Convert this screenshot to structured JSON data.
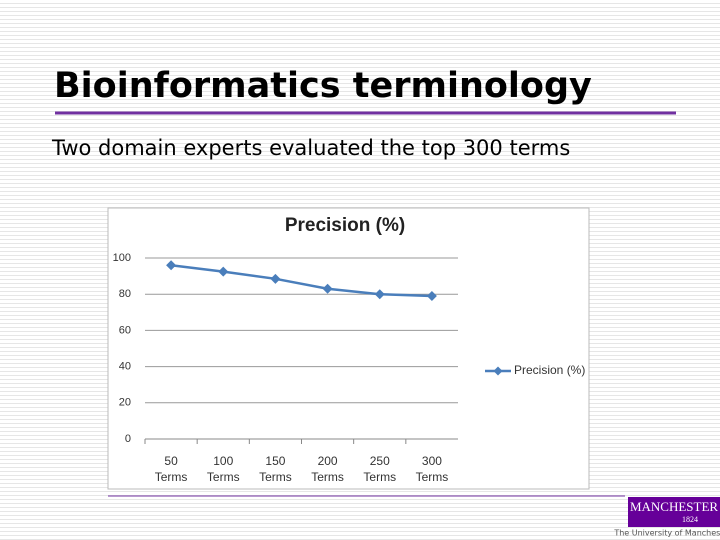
{
  "slide": {
    "title": "Bioinformatics terminology",
    "text": "Two domain experts evaluated the top 300 terms"
  },
  "chart_data": {
    "type": "line",
    "title": "Precision (%)",
    "categories": [
      "50 Terms",
      "100 Terms",
      "150 Terms",
      "200 Terms",
      "250 Terms",
      "300 Terms"
    ],
    "series": [
      {
        "name": "Precision (%)",
        "color": "#4a7ebb",
        "values": [
          96,
          92.5,
          88.5,
          83,
          80,
          79
        ]
      }
    ],
    "ylim": [
      0,
      100
    ],
    "yticks": [
      0,
      20,
      40,
      60,
      80,
      100
    ],
    "grid": true,
    "legend": "right"
  },
  "logo": {
    "name": "MANCHESTER",
    "year": "1824",
    "caption": "The University of Manchester"
  }
}
